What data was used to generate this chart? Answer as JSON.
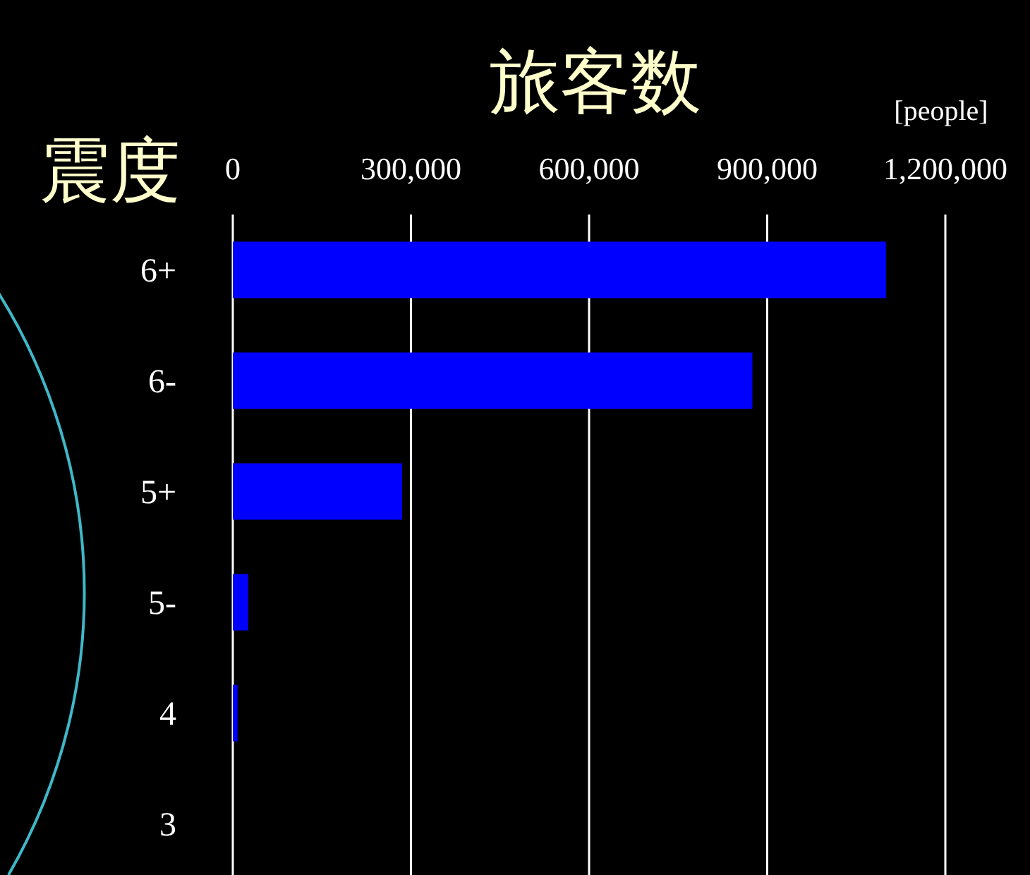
{
  "chart_data": {
    "type": "bar",
    "orientation": "horizontal",
    "title": "旅客数",
    "ylabel": "震度",
    "xlabel": "[people]",
    "categories": [
      "6+",
      "6-",
      "5+",
      "5-",
      "4",
      "3"
    ],
    "values": [
      1100000,
      875000,
      285000,
      26000,
      8000,
      0
    ],
    "color": "#0000ff",
    "xlim": [
      0,
      1200000
    ],
    "xticks": [
      0,
      {
        "value": 300000,
        "label": "300,000"
      },
      {
        "value": 600000,
        "label": "600,000"
      },
      {
        "value": 900000,
        "label": "900,000"
      },
      {
        "value": 1200000,
        "label": "1,200,000"
      }
    ],
    "grid": "x"
  }
}
